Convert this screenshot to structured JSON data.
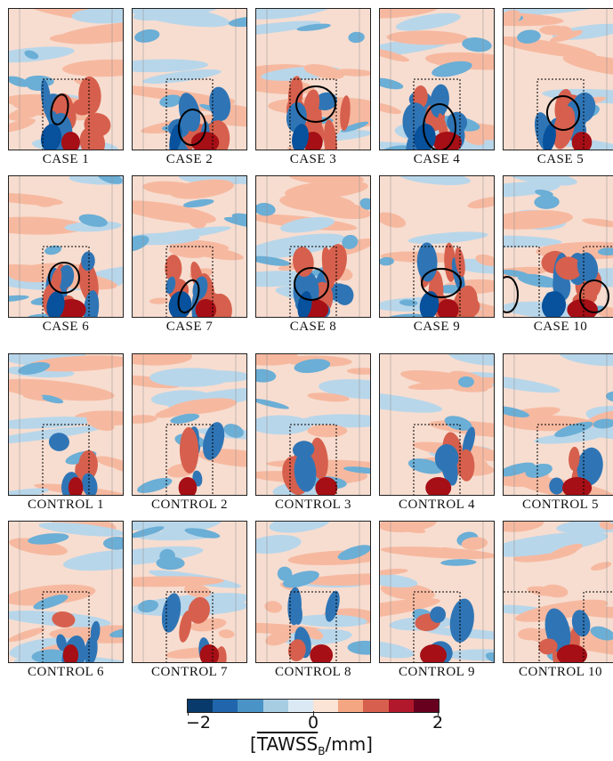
{
  "cases": [
    "CASE 1",
    "CASE 2",
    "CASE 3",
    "CASE 4",
    "CASE 5",
    "CASE 6",
    "CASE 7",
    "CASE 8",
    "CASE 9",
    "CASE 10"
  ],
  "controls": [
    "CONTROL 1",
    "CONTROL 2",
    "CONTROL 3",
    "CONTROL 4",
    "CONTROL 5",
    "CONTROL 6",
    "CONTROL 7",
    "CONTROL 8",
    "CONTROL 9",
    "CONTROL 10"
  ],
  "colorbar": {
    "min_label": "−2",
    "mid_label": "0",
    "max_label": "2",
    "title_prefix": "[",
    "title_main": "TAWSS",
    "title_sub": "B",
    "title_suffix": "/mm]",
    "colors": [
      "#083a6b",
      "#2166ac",
      "#4a93c6",
      "#a7cde3",
      "#dbe9f4",
      "#fbe3d6",
      "#f4a582",
      "#d6604d",
      "#b2182b",
      "#67001f"
    ]
  }
}
